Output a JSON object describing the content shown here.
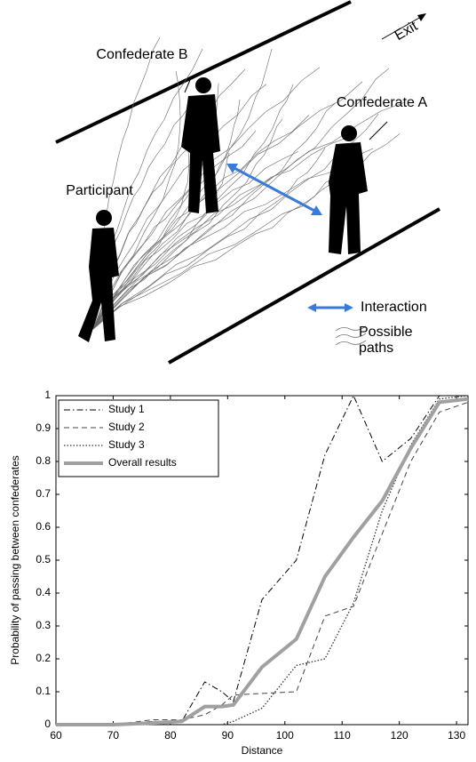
{
  "diagram": {
    "labels": {
      "confederate_b": "Confederate B",
      "confederate_a": "Confederate A",
      "participant": "Participant",
      "exit": "Exit",
      "interaction": "Interaction",
      "possible": "Possible",
      "paths": "paths"
    }
  },
  "chart_data": {
    "type": "line",
    "xlabel": "Distance",
    "ylabel": "Probability of passing between confederates",
    "x": [
      60,
      70,
      77,
      82,
      86,
      89,
      91,
      96,
      102,
      107,
      112,
      117,
      122,
      127,
      132
    ],
    "series": [
      {
        "name": "Study 1",
        "color": "#000000",
        "dash": "dashdot",
        "width": 1,
        "values": [
          0,
          0,
          0.01,
          0.01,
          0.13,
          0.1,
          0.07,
          0.38,
          0.5,
          0.82,
          1.0,
          0.8,
          0.87,
          1.0,
          1.0
        ]
      },
      {
        "name": "Study 2",
        "color": "#444444",
        "dash": "dashed",
        "width": 1,
        "values": [
          0,
          0,
          0.015,
          0.015,
          0.03,
          0.06,
          0.09,
          0.095,
          0.1,
          0.33,
          0.36,
          0.58,
          0.8,
          0.95,
          0.98
        ]
      },
      {
        "name": "Study 3",
        "color": "#333333",
        "dash": "dotted",
        "width": 1.3,
        "values": [
          0,
          0,
          0,
          0,
          0,
          0,
          0.01,
          0.05,
          0.18,
          0.2,
          0.37,
          0.65,
          0.85,
          0.99,
          1.0
        ]
      },
      {
        "name": "Overall results",
        "color": "#a0a0a0",
        "dash": "solid",
        "width": 4,
        "values": [
          0,
          0,
          0.005,
          0.01,
          0.055,
          0.055,
          0.06,
          0.175,
          0.26,
          0.45,
          0.57,
          0.68,
          0.84,
          0.98,
          0.99
        ]
      }
    ],
    "xlim": [
      60,
      132
    ],
    "ylim": [
      0,
      1
    ],
    "xticks": [
      60,
      70,
      80,
      90,
      100,
      110,
      120,
      130
    ],
    "yticks": [
      0,
      0.1,
      0.2,
      0.3,
      0.4,
      0.5,
      0.6,
      0.7,
      0.8,
      0.9,
      1
    ],
    "legend": "upper-left",
    "grid": false
  }
}
